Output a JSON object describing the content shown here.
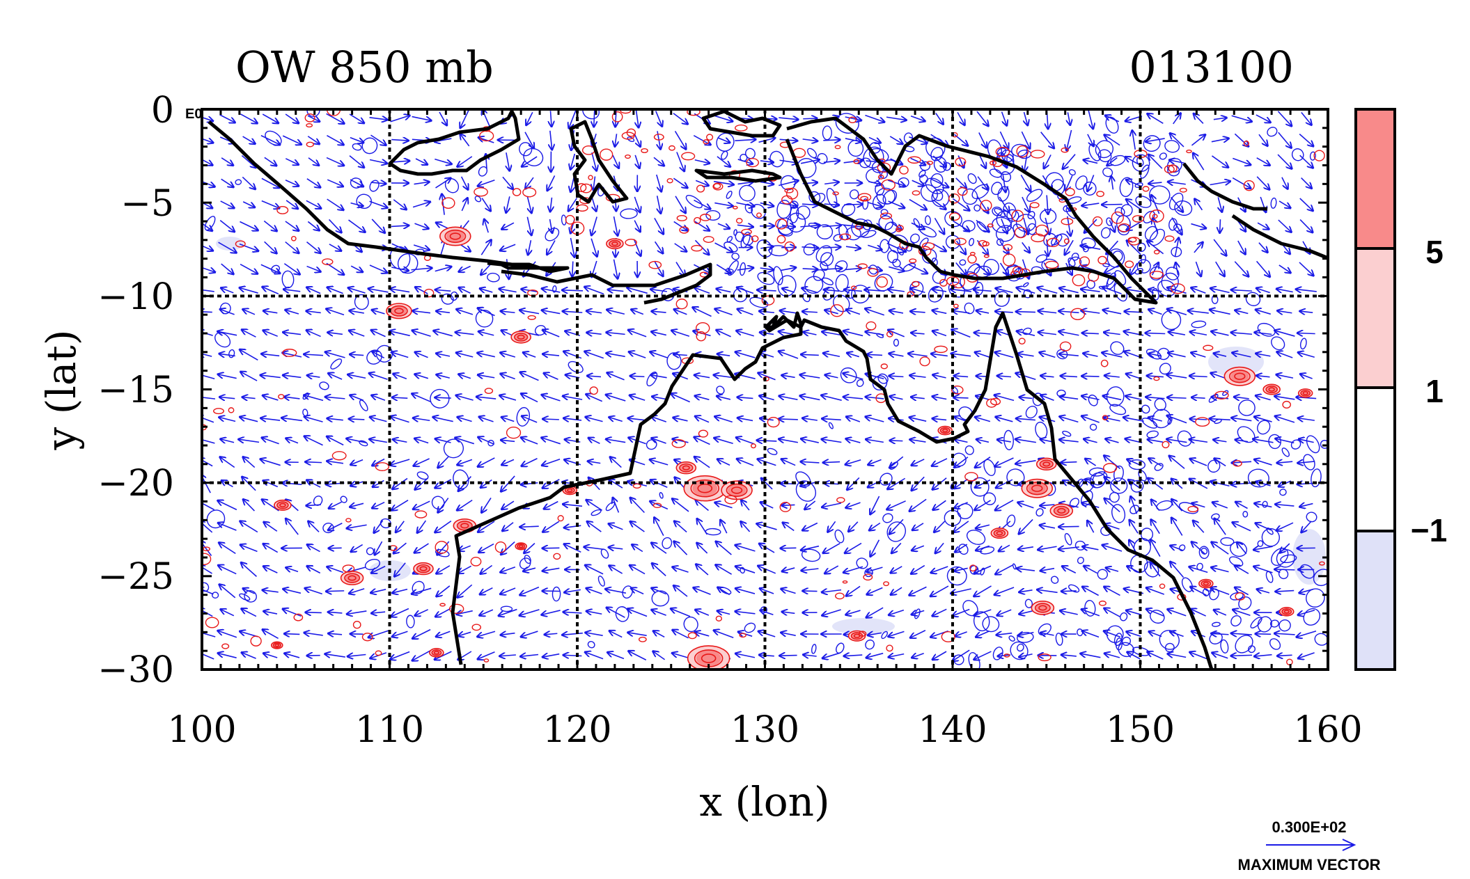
{
  "header": {
    "title": "OW 850 mb",
    "timestamp": "013100",
    "corner_label": "E0"
  },
  "axes": {
    "xlabel": "x (lon)",
    "ylabel": "y (lat)",
    "xlim": [
      100,
      160
    ],
    "ylim": [
      -30,
      0
    ],
    "xticks": [
      "100",
      "110",
      "120",
      "130",
      "140",
      "150",
      "160"
    ],
    "yticks": [
      "0",
      "−5",
      "−10",
      "−15",
      "−20",
      "−25",
      "−30"
    ],
    "grid_lon": [
      110,
      120,
      130,
      140,
      150
    ],
    "grid_lat": [
      -10,
      -20
    ]
  },
  "colorbar": {
    "levels": [
      "5",
      "1",
      "−1"
    ],
    "colors": {
      "high": "#f88a8a",
      "mid": "#fbcfd0",
      "neutral": "#ffffff",
      "low": "#dfe1f8"
    }
  },
  "legend": {
    "magnitude": "0.300E+02",
    "label": "MAXIMUM VECTOR"
  },
  "colors": {
    "positive_contour": "#e81818",
    "negative_contour": "#1a1ae6",
    "vector": "#1a1ae6",
    "coastline": "#000000"
  }
}
